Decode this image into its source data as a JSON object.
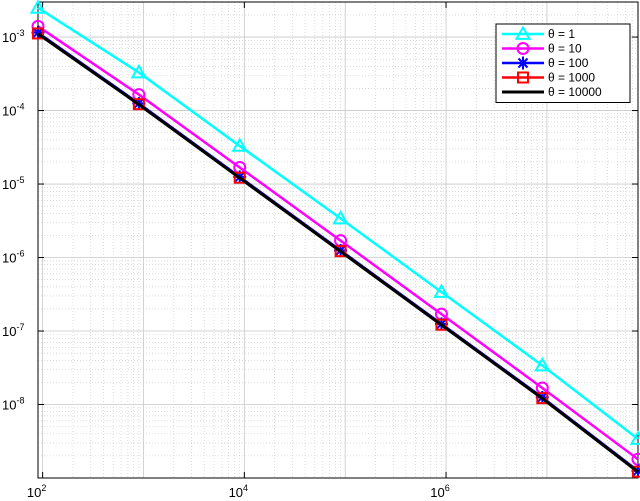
{
  "chart_data": {
    "type": "line",
    "xscale": "log",
    "yscale": "log",
    "xlim": [
      90,
      80000000
    ],
    "ylim": [
      1e-09,
      0.003
    ],
    "grid": true,
    "minor_grid": true,
    "legend_location": "top-right",
    "x_tick_labels": [
      {
        "value": 100,
        "base": "10",
        "exp": "2"
      },
      {
        "value": 10000,
        "base": "10",
        "exp": "4"
      },
      {
        "value": 1000000,
        "base": "10",
        "exp": "6"
      }
    ],
    "y_tick_labels": [
      {
        "value": 0.001,
        "base": "10",
        "exp": "-3"
      },
      {
        "value": 0.0001,
        "base": "10",
        "exp": "-4"
      },
      {
        "value": 1e-05,
        "base": "10",
        "exp": "-5"
      },
      {
        "value": 1e-06,
        "base": "10",
        "exp": "-6"
      },
      {
        "value": 1e-07,
        "base": "10",
        "exp": "-7"
      },
      {
        "value": 1e-08,
        "base": "10",
        "exp": "-8"
      }
    ],
    "x": [
      90,
      900,
      9000,
      90000,
      900000,
      9000000,
      80000000
    ],
    "series": [
      {
        "name": "θ = 1",
        "color": "#00ffff",
        "marker": "triangle",
        "values": [
          0.0025,
          0.00033,
          3.3e-05,
          3.4e-06,
          3.4e-07,
          3.4e-08,
          3.4e-09
        ]
      },
      {
        "name": "θ = 10",
        "color": "#ff00ff",
        "marker": "circle",
        "values": [
          0.0014,
          0.000165,
          1.68e-05,
          1.7e-06,
          1.7e-07,
          1.68e-08,
          1.8e-09
        ]
      },
      {
        "name": "θ = 100",
        "color": "#0000ff",
        "marker": "star",
        "values": [
          0.00115,
          0.000125,
          1.25e-05,
          1.25e-06,
          1.25e-07,
          1.25e-08,
          1.25e-09
        ]
      },
      {
        "name": "θ = 1000",
        "color": "#ff0000",
        "marker": "square",
        "values": [
          0.00112,
          0.000122,
          1.22e-05,
          1.22e-06,
          1.22e-07,
          1.22e-08,
          1.22e-09
        ]
      },
      {
        "name": "θ = 10000",
        "color": "#000000",
        "marker": "none",
        "values": [
          0.00111,
          0.000121,
          1.21e-05,
          1.21e-06,
          1.21e-07,
          1.21e-08,
          1.21e-09
        ]
      }
    ]
  }
}
